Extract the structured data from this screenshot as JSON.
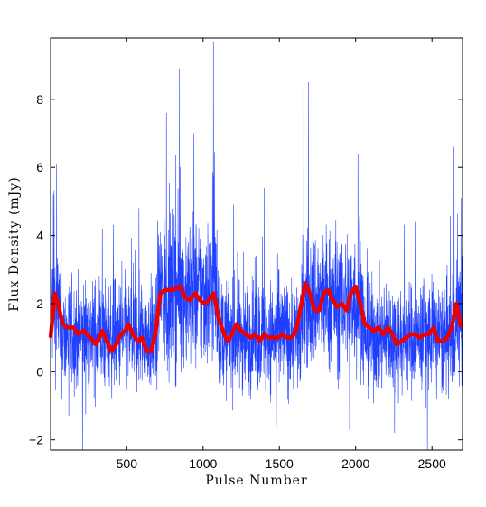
{
  "chart_data": {
    "type": "line",
    "title": "",
    "xlabel": "Pulse Number",
    "ylabel": "Flux Density (mJy)",
    "xlim": [
      1,
      2700
    ],
    "ylim": [
      -2.3,
      9.8
    ],
    "xticks": [
      500,
      1000,
      1500,
      2000,
      2500
    ],
    "yticks": [
      -2,
      0,
      2,
      4,
      6,
      8
    ],
    "grid": false,
    "legend": "none",
    "series": [
      {
        "role": "single-pulse flux density",
        "color": "#1f3fff",
        "style": "thin-line",
        "x_range": [
          1,
          2700
        ],
        "segments": [
          {
            "x": [
              1,
              60
            ],
            "mean": 1.9,
            "spread": 1.5
          },
          {
            "x": [
              60,
              700
            ],
            "mean": 1.05,
            "spread": 1.3
          },
          {
            "x": [
              700,
              1100
            ],
            "mean": 2.3,
            "spread": 1.8
          },
          {
            "x": [
              1100,
              1650
            ],
            "mean": 1.05,
            "spread": 1.3
          },
          {
            "x": [
              1650,
              2050
            ],
            "mean": 2.1,
            "spread": 1.7
          },
          {
            "x": [
              2050,
              2650
            ],
            "mean": 1.0,
            "spread": 1.3
          },
          {
            "x": [
              2650,
              2700
            ],
            "mean": 1.6,
            "spread": 1.5
          }
        ],
        "peaks": [
          {
            "x": 40,
            "y": 6.1
          },
          {
            "x": 70,
            "y": 6.4
          },
          {
            "x": 210,
            "y": -2.3
          },
          {
            "x": 845,
            "y": 8.9
          },
          {
            "x": 760,
            "y": 7.6
          },
          {
            "x": 1045,
            "y": 6.6
          },
          {
            "x": 1068,
            "y": 9.7
          },
          {
            "x": 940,
            "y": 7.0
          },
          {
            "x": 1400,
            "y": 5.4
          },
          {
            "x": 1660,
            "y": 9.0
          },
          {
            "x": 1690,
            "y": 8.5
          },
          {
            "x": 1845,
            "y": 7.3
          },
          {
            "x": 2015,
            "y": 6.4
          },
          {
            "x": 1960,
            "y": -1.7
          },
          {
            "x": 2255,
            "y": -1.8
          },
          {
            "x": 2470,
            "y": -2.3
          },
          {
            "x": 2645,
            "y": 6.6
          },
          {
            "x": 2690,
            "y": 5.1
          },
          {
            "x": 340,
            "y": 4.2
          },
          {
            "x": 580,
            "y": 4.8
          },
          {
            "x": 1200,
            "y": 4.9
          },
          {
            "x": 1480,
            "y": -1.6
          },
          {
            "x": 2390,
            "y": 4.4
          },
          {
            "x": 120,
            "y": -1.3
          }
        ]
      },
      {
        "role": "running mean",
        "color": "#ee0000",
        "style": "thick-line",
        "x": [
          1,
          30,
          55,
          80,
          110,
          150,
          180,
          220,
          260,
          300,
          340,
          370,
          400,
          430,
          460,
          490,
          510,
          540,
          570,
          600,
          630,
          660,
          690,
          720,
          750,
          800,
          850,
          880,
          910,
          950,
          980,
          1010,
          1040,
          1070,
          1100,
          1130,
          1160,
          1190,
          1220,
          1250,
          1280,
          1310,
          1340,
          1370,
          1400,
          1430,
          1460,
          1490,
          1520,
          1550,
          1580,
          1610,
          1640,
          1670,
          1700,
          1730,
          1760,
          1790,
          1820,
          1850,
          1880,
          1910,
          1940,
          1970,
          2000,
          2030,
          2060,
          2090,
          2120,
          2150,
          2180,
          2210,
          2240,
          2270,
          2300,
          2330,
          2360,
          2390,
          2420,
          2450,
          2480,
          2510,
          2540,
          2570,
          2600,
          2630,
          2660,
          2690
        ],
        "y": [
          1.0,
          2.3,
          1.9,
          1.4,
          1.3,
          1.3,
          1.1,
          1.2,
          1.0,
          0.8,
          1.2,
          0.9,
          0.6,
          0.8,
          1.1,
          1.2,
          1.4,
          1.1,
          0.9,
          1.0,
          0.6,
          0.6,
          1.2,
          2.3,
          2.4,
          2.4,
          2.5,
          2.2,
          2.1,
          2.3,
          2.1,
          2.0,
          2.1,
          2.3,
          1.6,
          1.2,
          0.9,
          1.1,
          1.4,
          1.2,
          1.1,
          1.0,
          1.1,
          0.9,
          1.1,
          1.0,
          1.0,
          1.0,
          1.1,
          1.0,
          1.0,
          1.2,
          1.9,
          2.6,
          2.3,
          1.8,
          1.8,
          2.3,
          2.4,
          2.1,
          1.9,
          2.0,
          1.8,
          2.3,
          2.5,
          2.0,
          1.4,
          1.3,
          1.2,
          1.3,
          1.1,
          1.3,
          1.1,
          0.8,
          0.9,
          1.0,
          1.1,
          1.1,
          1.0,
          1.1,
          1.1,
          1.3,
          0.9,
          0.9,
          1.0,
          1.3,
          2.0,
          1.3
        ]
      }
    ]
  }
}
